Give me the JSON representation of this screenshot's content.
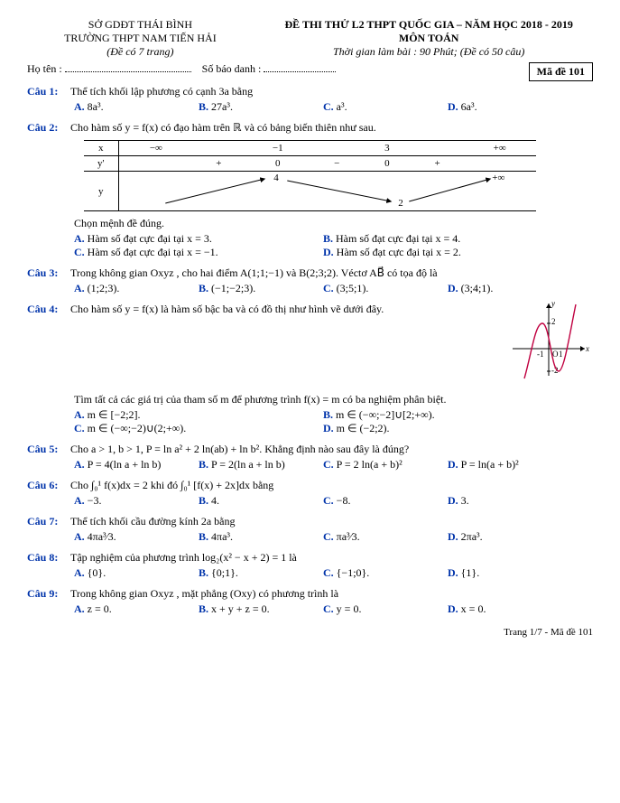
{
  "header": {
    "so": "SỞ GDĐT THÁI BÌNH",
    "truong": "TRƯỜNG THPT NAM TIẾN HẢI",
    "de_co": "(Đề có 7 trang)",
    "title": "ĐỀ THI THỬ L2 THPT QUỐC GIA – NĂM HỌC 2018 - 2019",
    "mon": "MÔN TOÁN",
    "thoi_gian": "Thời gian làm bài : 90 Phút; (Đề có 50 câu)",
    "ho_ten": "Họ tên :",
    "sbd": "Số báo danh :",
    "ma_de": "Mã đề 101"
  },
  "questions": [
    {
      "label": "Câu 1:",
      "text": "Thể tích khối lập phương có cạnh 3a bằng",
      "choices": [
        "8a³.",
        "27a³.",
        "a³.",
        "6a³."
      ]
    },
    {
      "label": "Câu 2:",
      "text": "Cho hàm số y = f(x) có đạo hàm trên ℝ và có bảng biến thiên như sau.",
      "table": {
        "x": [
          "−∞",
          "",
          "−1",
          "",
          "3",
          "",
          "+∞"
        ],
        "y'": [
          "",
          "+",
          "0",
          "−",
          "0",
          "+",
          ""
        ],
        "y": {
          "left": "",
          "peak": "4",
          "trough": "2",
          "right": "+∞"
        }
      },
      "sub": "Chọn mệnh đề đúng.",
      "choices_half": [
        "Hàm số đạt cực đại tại x = 3.",
        "Hàm số đạt cực đại tại x = 4.",
        "Hàm số đạt cực đại tại x = −1.",
        "Hàm số đạt cực đại tại x = 2."
      ]
    },
    {
      "label": "Câu 3:",
      "text": "Trong không gian Oxyz , cho hai điểm A(1;1;−1) và B(2;3;2). Véctơ AB⃗ có tọa độ là",
      "choices": [
        "(1;2;3).",
        "(−1;−2;3).",
        "(3;5;1).",
        "(3;4;1)."
      ]
    },
    {
      "label": "Câu 4:",
      "text": "Cho hàm số y = f(x) là hàm số bậc ba và có đồ thị như hình vẽ dưới đây.",
      "graph": true,
      "sub": "Tìm tất cả các giá trị của tham số m để phương trình f(x) = m có ba nghiệm phân biệt.",
      "choices_half": [
        "m ∈ [−2;2].",
        "m ∈ (−∞;−2]∪[2;+∞).",
        "m ∈ (−∞;−2)∪(2;+∞).",
        "m ∈ (−2;2)."
      ]
    },
    {
      "label": "Câu 5:",
      "text": "Cho a > 1, b > 1, P = ln a² + 2 ln(ab) + ln b². Khẳng định nào sau đây là đúng?",
      "choices": [
        "P = 4(ln a + ln b)",
        "P = 2(ln a + ln b)",
        "P = 2 ln(a + b)²",
        "P = ln(a + b)²"
      ]
    },
    {
      "label": "Câu 6:",
      "text": "Cho ∫₀¹ f(x)dx = 2 khi đó ∫₀¹ [f(x) + 2x]dx bằng",
      "choices": [
        "−3.",
        "4.",
        "−8.",
        "3."
      ]
    },
    {
      "label": "Câu 7:",
      "text": "Thể tích khối cầu đường kính 2a bằng",
      "choices": [
        "4πa³∕3.",
        "4πa³.",
        "πa³∕3.",
        "2πa³."
      ]
    },
    {
      "label": "Câu 8:",
      "text": "Tập nghiệm của phương trình log₂(x² − x + 2) = 1 là",
      "choices": [
        "{0}.",
        "{0;1}.",
        "{−1;0}.",
        "{1}."
      ]
    },
    {
      "label": "Câu 9:",
      "text": "Trong không gian Oxyz , mặt phẳng (Oxy) có phương trình là",
      "choices": [
        "z = 0.",
        "x + y + z = 0.",
        "y = 0.",
        "x = 0."
      ]
    }
  ],
  "footer": "Trang 1/7 - Mã đề 101",
  "letters": [
    "A.",
    "B.",
    "C.",
    "D."
  ],
  "colors": {
    "accent": "#0033aa"
  }
}
